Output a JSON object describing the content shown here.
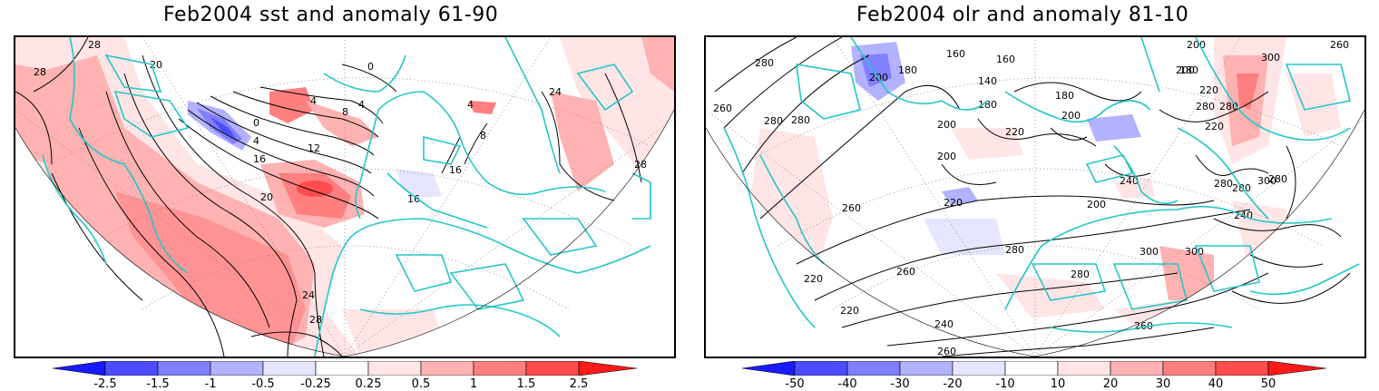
{
  "panels": [
    {
      "title": "Feb2004 sst and anomaly 61-90",
      "colorbar_labels": [
        "-2.5",
        "-1.5",
        "-1",
        "-0.5",
        "-0.25",
        "0.25",
        "0.5",
        "1",
        "1.5",
        "2.5"
      ],
      "contour_labels": [
        "28",
        "28",
        "20",
        "0",
        "4",
        "4",
        "0",
        "8",
        "4",
        "12",
        "16",
        "20",
        "16",
        "16",
        "4",
        "8",
        "24",
        "28",
        "24",
        "28"
      ]
    },
    {
      "title": "Feb2004 olr and anomaly 81-10",
      "colorbar_labels": [
        "-50",
        "-40",
        "-30",
        "-20",
        "-10",
        "10",
        "20",
        "30",
        "40",
        "50"
      ],
      "contour_labels": [
        "280",
        "160",
        "180",
        "200",
        "160",
        "140",
        "180",
        "200",
        "180",
        "220",
        "200",
        "260",
        "200",
        "180",
        "200",
        "220",
        "280",
        "280",
        "200",
        "220",
        "240",
        "300",
        "280",
        "300",
        "280",
        "260",
        "220",
        "300",
        "280",
        "240",
        "280",
        "260",
        "220",
        "240",
        "260",
        "220",
        "200",
        "260",
        "260",
        "280",
        "280",
        "280",
        "300"
      ]
    }
  ],
  "colors": {
    "neg": [
      "#1a1aff",
      "#4d4dff",
      "#7f7fff",
      "#b2b2ff",
      "#e5e5ff"
    ],
    "pos": [
      "#ffe5e5",
      "#ffb2b2",
      "#ff7f7f",
      "#ff4d4d",
      "#ff1a1a"
    ],
    "coastline": "#26c6c6",
    "contour": "#000000",
    "grid": "#888888"
  }
}
